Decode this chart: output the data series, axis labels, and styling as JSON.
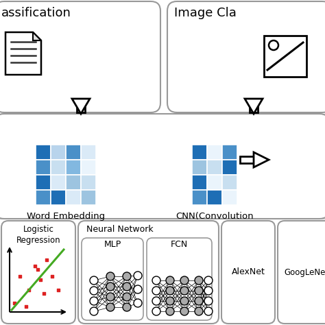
{
  "bg_color": "#ffffff",
  "we_colors": [
    [
      "#1e6eb5",
      "#b8d4ec",
      "#4a90c8",
      "#daeaf7"
    ],
    [
      "#4a90c8",
      "#c8dff0",
      "#82b8e0",
      "#eaf4fc"
    ],
    [
      "#1e6eb5",
      "#daeaf7",
      "#9dc4e0",
      "#c8dff0"
    ],
    [
      "#4a90c8",
      "#1e6eb5",
      "#daeaf7",
      "#9dc4e0"
    ]
  ],
  "cnn_colors": [
    [
      "#1e6eb5",
      "#eaf4fc",
      "#4a90c8"
    ],
    [
      "#9dc4e0",
      "#c8dff0",
      "#1e6eb5"
    ],
    [
      "#1e6eb5",
      "#eaf4fc",
      "#c8dff0"
    ],
    [
      "#4a90c8",
      "#1e6eb5",
      "#eaf4fc"
    ]
  ],
  "label_word_embedding": "Word Embedding",
  "label_cnn": "CNN(Convolution",
  "label_neural": "Neural Network",
  "label_mlp": "MLP",
  "label_fcn": "FCN",
  "label_alexnet": "AlexNet",
  "label_googlenet": "GoogLeNet",
  "title_left": "assification",
  "title_right": "Image Cla"
}
